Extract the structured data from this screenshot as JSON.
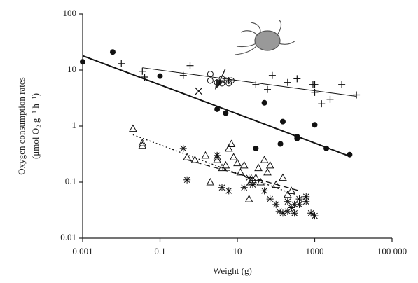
{
  "chart_data": {
    "type": "scatter",
    "xlabel": "Weight (g)",
    "ylabel": [
      "Oxygen consumption rates",
      "(μmol O₂ g⁻¹ h⁻¹)"
    ],
    "xscale": "log",
    "yscale": "log",
    "xlim": [
      0.001,
      100000
    ],
    "ylim": [
      0.01,
      100
    ],
    "xticks": [
      0.001,
      0.1,
      10,
      1000,
      {
        "value": 100000,
        "label": "100 000"
      }
    ],
    "yticks": [
      100,
      10,
      1,
      0.1,
      0.01
    ],
    "series": [
      {
        "marker": "filled-circle",
        "color": "#111",
        "x": [
          0.001,
          0.006,
          0.1,
          3,
          5,
          50,
          150,
          130,
          350,
          350,
          1000,
          2000,
          8000,
          30
        ],
        "y": [
          14,
          21,
          7.8,
          2,
          1.7,
          2.6,
          1.2,
          0.48,
          0.65,
          0.6,
          1.05,
          0.4,
          0.31,
          0.4
        ]
      },
      {
        "marker": "plus",
        "color": "#111",
        "x": [
          0.01,
          0.035,
          0.04,
          0.4,
          0.6,
          6,
          30,
          60,
          80,
          200,
          350,
          900,
          1000,
          1000,
          1500,
          2500,
          5000,
          12000
        ],
        "y": [
          13,
          9.5,
          7.5,
          8,
          12,
          6.5,
          5.5,
          4.5,
          8,
          6,
          7,
          5.5,
          5.5,
          4,
          2.5,
          3,
          5.5,
          3.6
        ]
      },
      {
        "marker": "open-circle",
        "color": "#111",
        "x": [
          2,
          2,
          3,
          4,
          5,
          6,
          7,
          4
        ],
        "y": [
          8.5,
          6.5,
          6,
          7,
          6.5,
          5.8,
          6.5,
          5.8
        ]
      },
      {
        "marker": "cross",
        "color": "#111",
        "x": [
          1
        ],
        "y": [
          4.2
        ]
      },
      {
        "marker": "triangle",
        "color": "#111",
        "x": [
          0.02,
          0.035,
          0.035,
          0.5,
          0.8,
          1.5,
          2,
          3,
          3,
          4,
          5,
          6,
          7,
          10,
          12,
          20,
          22,
          25,
          30,
          35,
          40,
          50,
          60,
          70,
          100,
          150,
          200,
          250,
          8,
          15
        ],
        "y": [
          0.9,
          0.5,
          0.45,
          0.28,
          0.25,
          0.3,
          0.1,
          0.25,
          0.28,
          0.18,
          0.2,
          0.4,
          0.48,
          0.22,
          0.15,
          0.05,
          0.1,
          0.11,
          0.12,
          0.18,
          0.1,
          0.25,
          0.15,
          0.2,
          0.09,
          0.12,
          0.06,
          0.07,
          0.28,
          0.2
        ]
      },
      {
        "marker": "asterisk",
        "color": "#111",
        "x": [
          0.4,
          0.5,
          3,
          4,
          6,
          15,
          20,
          25,
          50,
          70,
          100,
          120,
          150,
          200,
          250,
          300,
          400,
          400,
          300,
          600,
          600,
          800,
          1000,
          200
        ],
        "y": [
          0.4,
          0.11,
          0.3,
          0.08,
          0.07,
          0.08,
          0.12,
          0.09,
          0.07,
          0.05,
          0.04,
          0.03,
          0.028,
          0.03,
          0.035,
          0.04,
          0.04,
          0.05,
          0.028,
          0.055,
          0.045,
          0.028,
          0.025,
          0.045
        ]
      }
    ],
    "fit_lines": [
      {
        "style": "solid-thick",
        "x": [
          0.001,
          8000
        ],
        "y": [
          18,
          0.29
        ]
      },
      {
        "style": "solid-thin",
        "x": [
          0.035,
          12000
        ],
        "y": [
          11,
          3.4
        ]
      },
      {
        "style": "dotted",
        "x": [
          0.02,
          300
        ],
        "y": [
          0.7,
          0.06
        ]
      },
      {
        "style": "dashed",
        "x": [
          0.5,
          400
        ],
        "y": [
          0.25,
          0.07
        ]
      }
    ]
  }
}
